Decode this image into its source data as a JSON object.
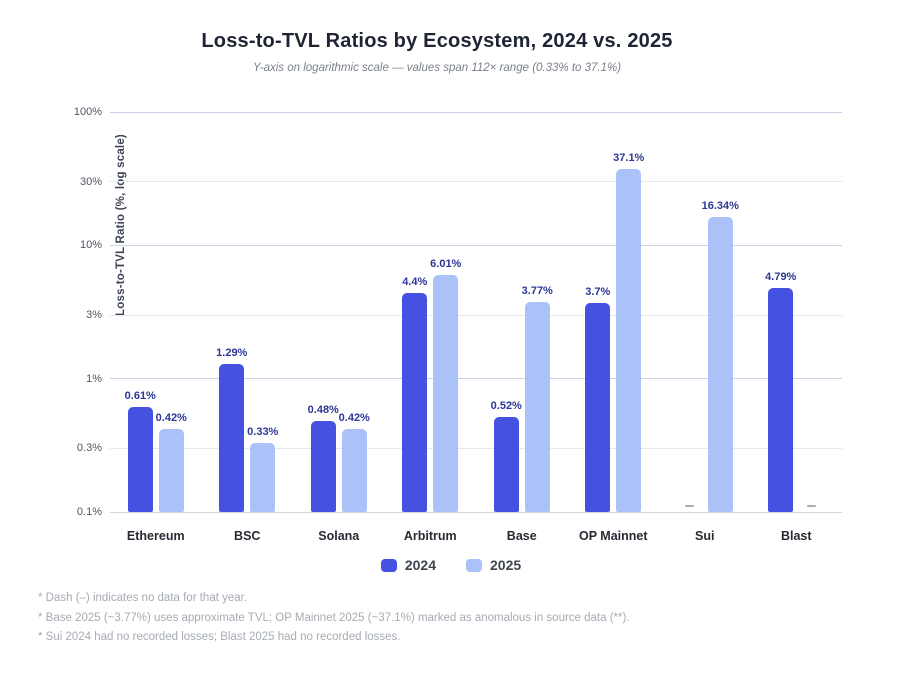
{
  "header": {
    "title": "Loss-to-TVL Ratios by Ecosystem, 2024 vs. 2025",
    "subtitle": "Y-axis on logarithmic scale — values span 112× range (0.33% to 37.1%)"
  },
  "chart_data": {
    "type": "bar",
    "scale": "log",
    "title": "Loss-to-TVL Ratios by Ecosystem, 2024 vs. 2025",
    "subtitle": "Y-axis on logarithmic scale — values span 112× range (0.33% to 37.1%)",
    "categories": [
      "Ethereum",
      "BSC",
      "Solana",
      "Arbitrum",
      "Base",
      "OP Mainnet",
      "Sui",
      "Blast"
    ],
    "series": [
      {
        "name": "2024",
        "color": "#4552e1",
        "values": [
          0.61,
          1.29,
          0.48,
          4.4,
          0.52,
          3.7,
          null,
          4.79
        ],
        "labels": [
          "0.61%",
          "1.29%",
          "0.48%",
          "4.4%",
          "0.52%",
          "3.7%",
          null,
          "4.79%"
        ]
      },
      {
        "name": "2025",
        "color": "#abc2f9",
        "values": [
          0.42,
          0.33,
          0.42,
          6.01,
          3.77,
          37.1,
          16.34,
          null
        ],
        "labels": [
          "0.42%",
          "0.33%",
          "0.42%",
          "6.01%",
          "3.77%",
          "37.1%",
          "16.34%",
          null
        ]
      }
    ],
    "xlabel": "",
    "ylabel": "Loss-to-TVL Ratio (%, log scale)",
    "ylim": [
      0.1,
      100
    ],
    "yticks": [
      {
        "value": 100,
        "label": "100%",
        "major": true
      },
      {
        "value": 30,
        "label": "30%",
        "major": false
      },
      {
        "value": 10,
        "label": "10%",
        "major": true
      },
      {
        "value": 3,
        "label": "3%",
        "major": false
      },
      {
        "value": 1,
        "label": "1%",
        "major": true
      },
      {
        "value": 0.3,
        "label": "0.3%",
        "major": false
      },
      {
        "value": 0.1,
        "label": "0.1%",
        "major": true
      }
    ],
    "grid": true,
    "legend_position": "bottom",
    "no_data_marker": "–"
  },
  "legend": {
    "items": [
      {
        "label": "2024",
        "color": "#4552e1"
      },
      {
        "label": "2025",
        "color": "#abc2f9"
      }
    ]
  },
  "footnotes": [
    "* Dash (–) indicates no data for that year.",
    "* Base 2025 (~3.77%) uses approximate TVL; OP Mainnet 2025 (~37.1%) marked as anomalous in source data (**).",
    "* Sui 2024 had no recorded losses; Blast 2025 had no recorded losses."
  ]
}
